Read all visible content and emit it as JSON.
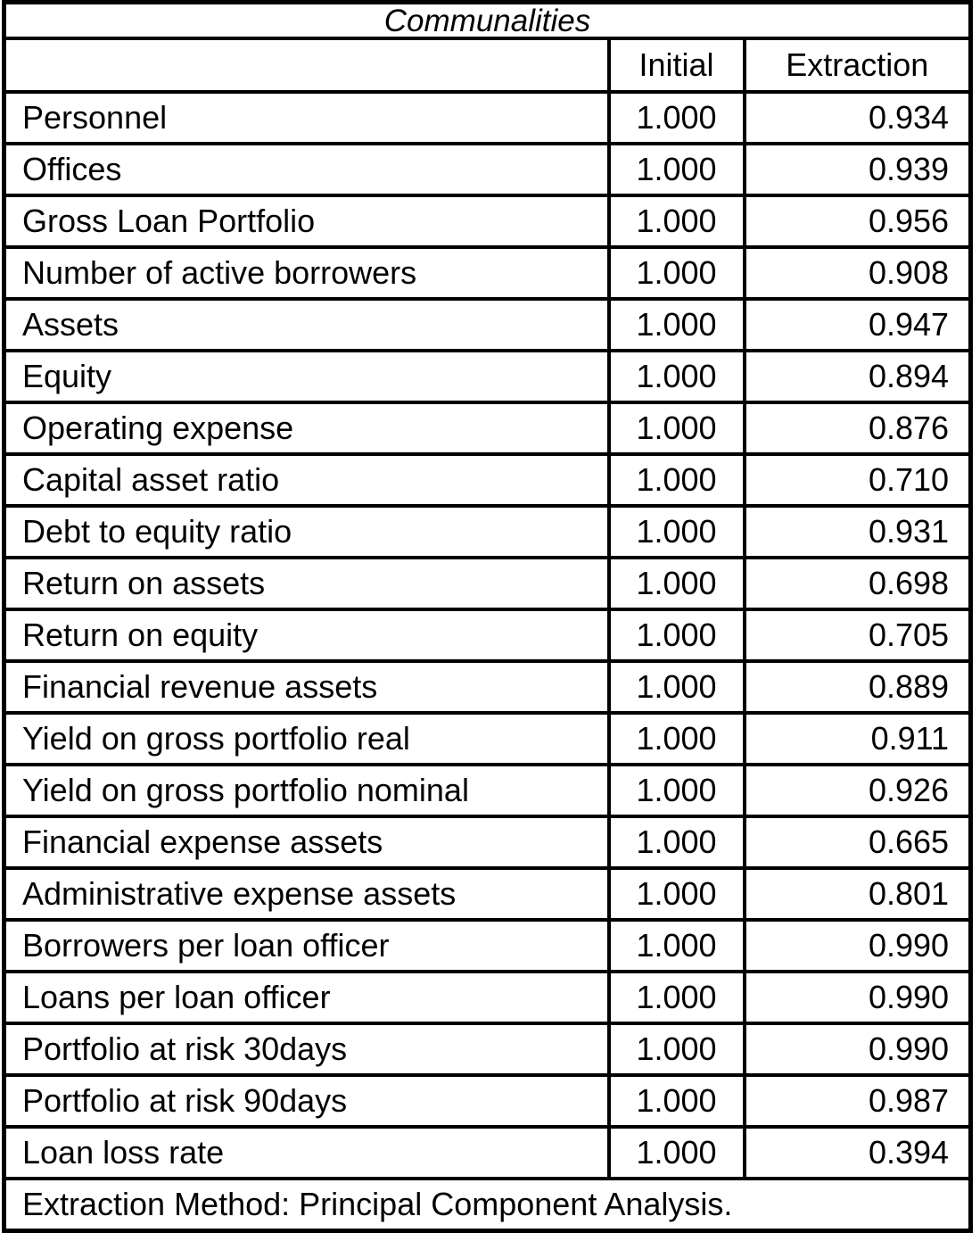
{
  "theme": {
    "ink_color": "#000000",
    "background_color": "#ffffff"
  },
  "table": {
    "title": "Communalities",
    "columns": {
      "label": "",
      "initial": "Initial",
      "extraction": "Extraction"
    },
    "rows": [
      {
        "label": "Personnel",
        "initial": "1.000",
        "extraction": "0.934"
      },
      {
        "label": "Offices",
        "initial": "1.000",
        "extraction": "0.939"
      },
      {
        "label": "Gross Loan Portfolio",
        "initial": "1.000",
        "extraction": "0.956"
      },
      {
        "label": "Number of active borrowers",
        "initial": "1.000",
        "extraction": "0.908"
      },
      {
        "label": "Assets",
        "initial": "1.000",
        "extraction": "0.947"
      },
      {
        "label": "Equity",
        "initial": "1.000",
        "extraction": "0.894"
      },
      {
        "label": "Operating expense",
        "initial": "1.000",
        "extraction": "0.876"
      },
      {
        "label": "Capital asset ratio",
        "initial": "1.000",
        "extraction": "0.710"
      },
      {
        "label": "Debt to equity ratio",
        "initial": "1.000",
        "extraction": "0.931"
      },
      {
        "label": "Return on assets",
        "initial": "1.000",
        "extraction": "0.698"
      },
      {
        "label": "Return on equity",
        "initial": "1.000",
        "extraction": "0.705"
      },
      {
        "label": "Financial revenue assets",
        "initial": "1.000",
        "extraction": "0.889"
      },
      {
        "label": "Yield on gross portfolio real",
        "initial": "1.000",
        "extraction": "0.911"
      },
      {
        "label": "Yield on gross portfolio nominal",
        "initial": "1.000",
        "extraction": "0.926"
      },
      {
        "label": "Financial expense assets",
        "initial": "1.000",
        "extraction": "0.665"
      },
      {
        "label": "Administrative expense assets",
        "initial": "1.000",
        "extraction": "0.801"
      },
      {
        "label": "Borrowers per loan officer",
        "initial": "1.000",
        "extraction": "0.990"
      },
      {
        "label": "Loans per loan officer",
        "initial": "1.000",
        "extraction": "0.990"
      },
      {
        "label": "Portfolio at risk 30days",
        "initial": "1.000",
        "extraction": "0.990"
      },
      {
        "label": "Portfolio at risk 90days",
        "initial": "1.000",
        "extraction": "0.987"
      },
      {
        "label": "Loan loss rate",
        "initial": "1.000",
        "extraction": "0.394"
      }
    ],
    "footnote": "Extraction Method: Principal Component Analysis."
  }
}
